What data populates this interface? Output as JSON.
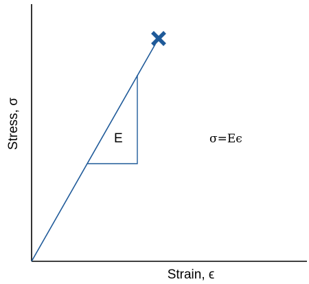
{
  "labels": {
    "x_axis": "Strain, ϵ",
    "y_axis": "Stress, σ",
    "slope": "E",
    "equation": "σ=Eϵ"
  },
  "colors": {
    "curve": "#1f5a99",
    "fracture_marker": "#1f5a99",
    "axes": "#000000"
  },
  "markers": {
    "fracture": "x-mark-icon"
  }
}
